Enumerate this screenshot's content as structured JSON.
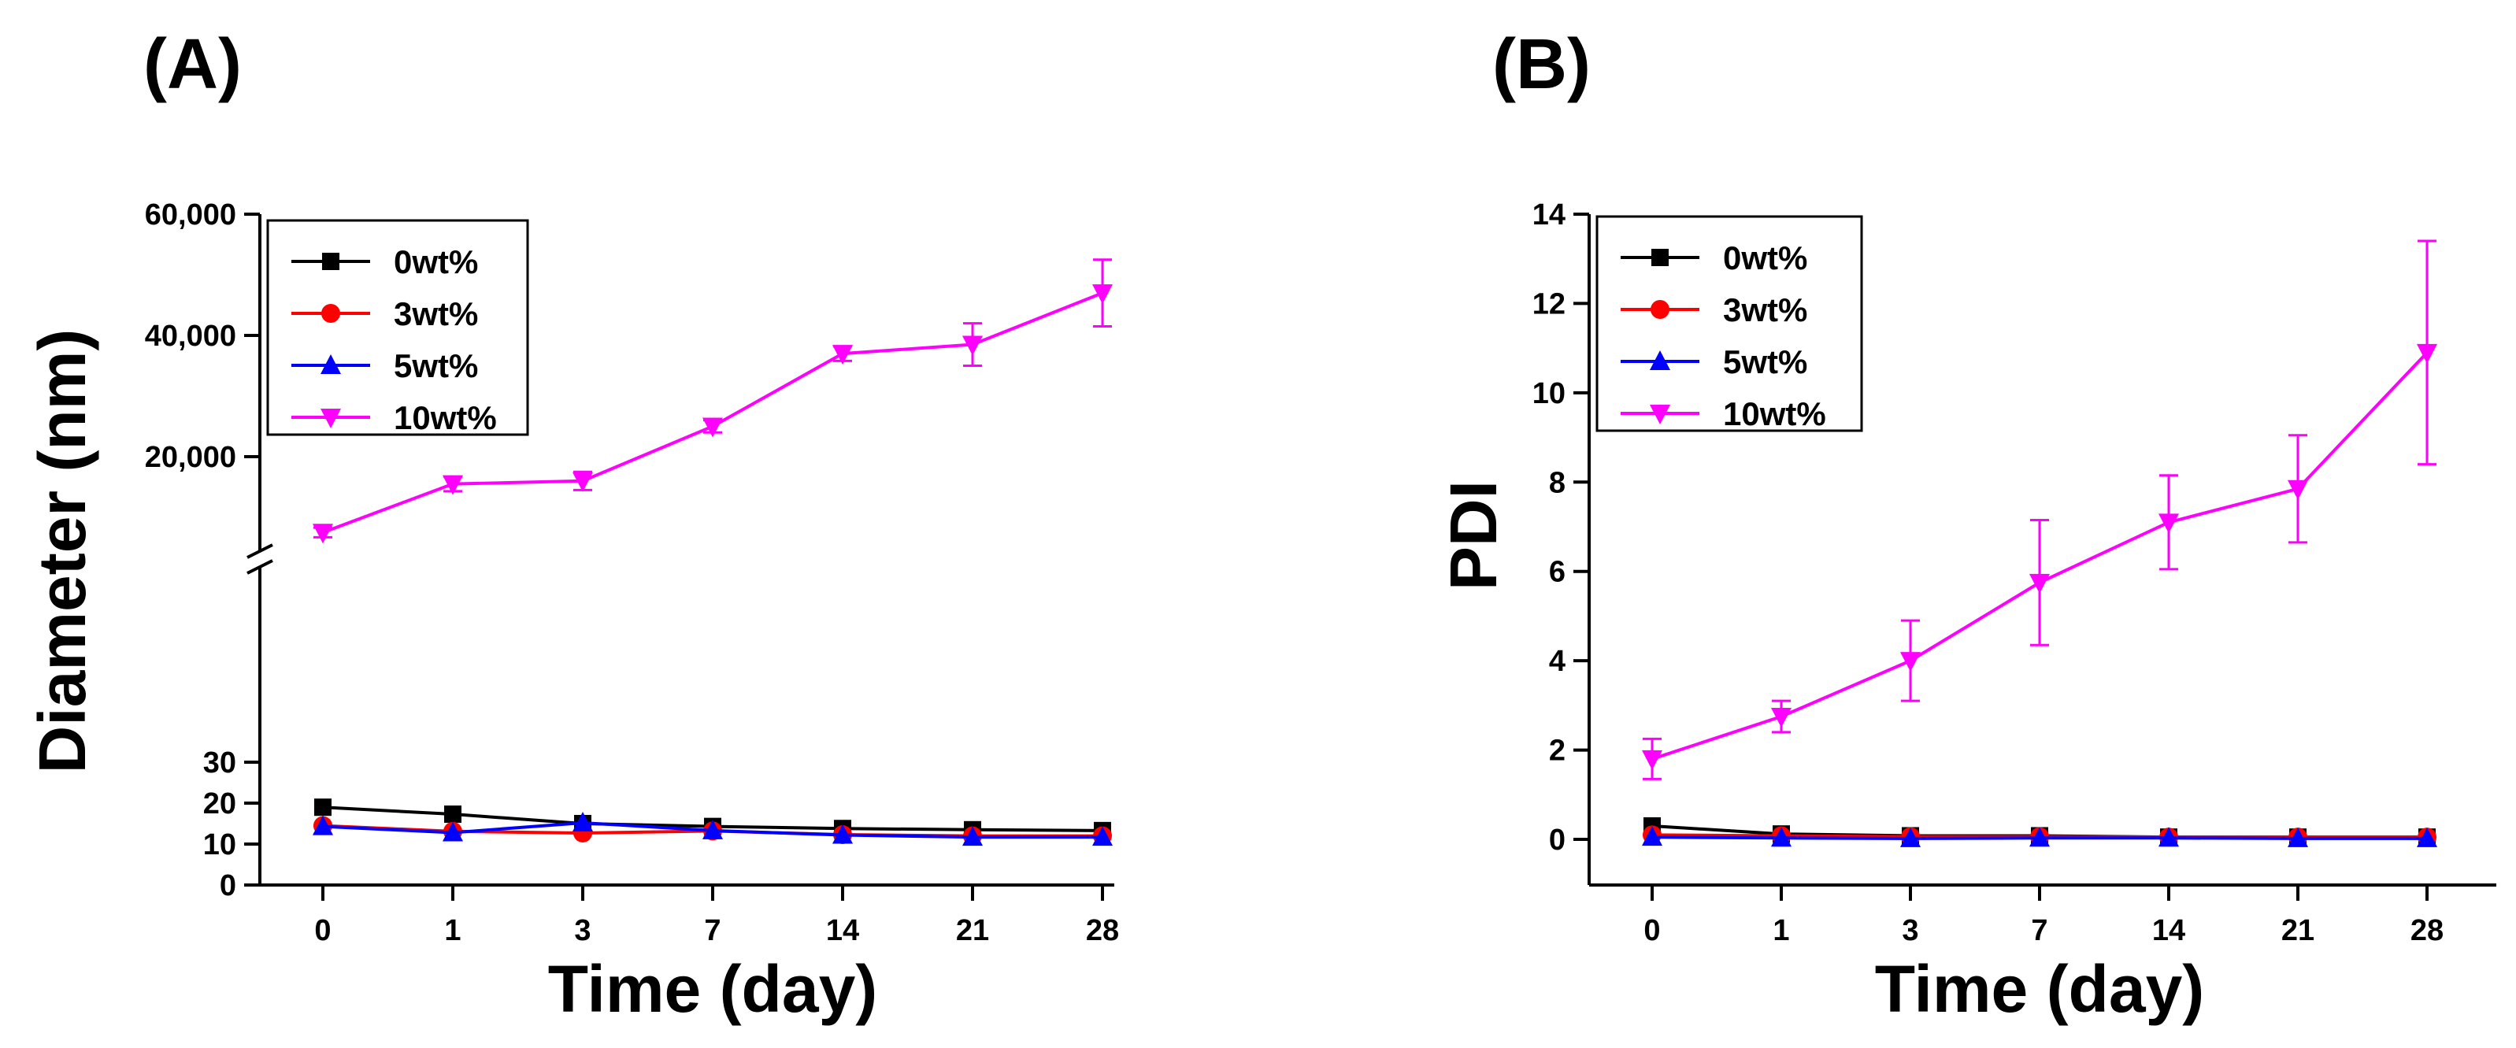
{
  "panel_labels": {
    "a": "(A)",
    "b": "(B)"
  },
  "chart_data": [
    {
      "type": "line",
      "panel": "(A)",
      "title": "",
      "xlabel": "Time (day)",
      "ylabel": "Diameter (nm)",
      "categories": [
        "0",
        "1",
        "3",
        "7",
        "14",
        "21",
        "28"
      ],
      "y_axis": "broken",
      "ylim_lower": [
        0,
        38
      ],
      "ylim_upper": [
        10000,
        60000
      ],
      "yticks_lower": [
        "0",
        "10",
        "20",
        "30"
      ],
      "yticks_upper": [
        "20,000",
        "40,000",
        "60,000"
      ],
      "legend_position": "top-left",
      "grid": false,
      "series": [
        {
          "name": "0wt%",
          "color": "#000000",
          "marker": "square",
          "segment": "lower",
          "values": [
            19,
            17.3,
            15,
            14.3,
            13.8,
            13.5,
            13.3
          ]
        },
        {
          "name": "3wt%",
          "color": "#ff0000",
          "marker": "circle",
          "segment": "lower",
          "values": [
            14.5,
            13.1,
            12.7,
            13.2,
            12.3,
            12,
            12
          ]
        },
        {
          "name": "5wt%",
          "color": "#0000ff",
          "marker": "triangle-up",
          "segment": "lower",
          "values": [
            14.3,
            12.8,
            15.2,
            13.3,
            12.2,
            11.7,
            11.7
          ]
        },
        {
          "name": "10wt%",
          "color": "#ff00ff",
          "marker": "triangle-down",
          "segment": "upper",
          "values": [
            7500,
            15500,
            16000,
            25000,
            37000,
            38500,
            47000
          ],
          "errors": [
            800,
            1200,
            1500,
            1000,
            1200,
            3500,
            5500
          ]
        }
      ]
    },
    {
      "type": "line",
      "panel": "(B)",
      "title": "",
      "xlabel": "Time (day)",
      "ylabel": "PDI",
      "categories": [
        "0",
        "1",
        "3",
        "7",
        "14",
        "21",
        "28"
      ],
      "ylim": [
        -1,
        14
      ],
      "yticks": [
        "0",
        "2",
        "4",
        "6",
        "8",
        "10",
        "12",
        "14"
      ],
      "legend_position": "top-left",
      "grid": false,
      "series": [
        {
          "name": "0wt%",
          "color": "#000000",
          "marker": "square",
          "values": [
            0.3,
            0.12,
            0.08,
            0.08,
            0.05,
            0.05,
            0.05
          ]
        },
        {
          "name": "3wt%",
          "color": "#ff0000",
          "marker": "circle",
          "values": [
            0.1,
            0.08,
            0.06,
            0.06,
            0.05,
            0.05,
            0.05
          ]
        },
        {
          "name": "5wt%",
          "color": "#0000ff",
          "marker": "triangle-up",
          "values": [
            0.05,
            0.03,
            0.02,
            0.03,
            0.03,
            0.02,
            0.02
          ]
        },
        {
          "name": "10wt%",
          "color": "#ff00ff",
          "marker": "triangle-down",
          "values": [
            1.8,
            2.75,
            4,
            5.75,
            7.1,
            7.85,
            10.9
          ],
          "errors": [
            0.45,
            0.35,
            0.9,
            1.4,
            1.05,
            1.2,
            2.5
          ]
        }
      ]
    }
  ]
}
